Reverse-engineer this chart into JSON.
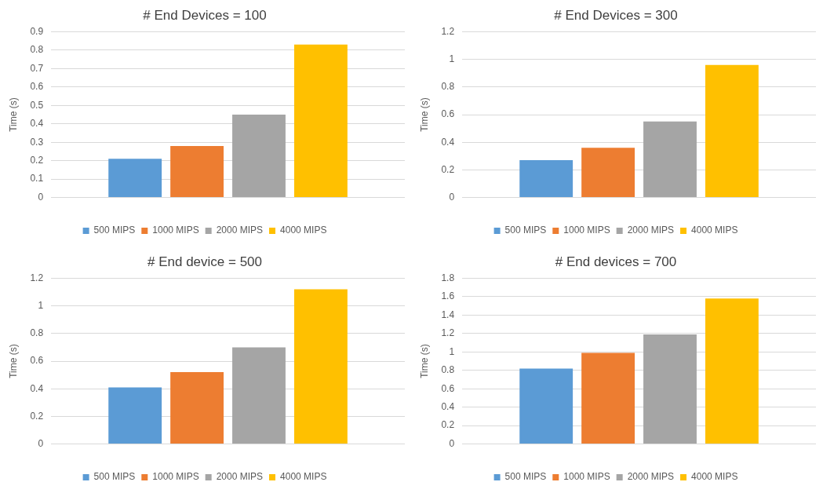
{
  "chart_data": [
    {
      "type": "bar",
      "title": "# End Devices = 100",
      "ylabel": "Time (s)",
      "categories": [
        null
      ],
      "series": [
        {
          "name": "500 MIPS",
          "color": "#5b9bd5",
          "values": [
            0.21
          ]
        },
        {
          "name": "1000 MIPS",
          "color": "#ed7d31",
          "values": [
            0.28
          ]
        },
        {
          "name": "2000 MIPS",
          "color": "#a5a5a5",
          "values": [
            0.45
          ]
        },
        {
          "name": "4000 MIPS",
          "color": "#ffc000",
          "values": [
            0.83
          ]
        }
      ],
      "ylim": [
        0,
        0.9
      ],
      "yticks": [
        0,
        0.1,
        0.2,
        0.3,
        0.4,
        0.5,
        0.6,
        0.7,
        0.8,
        0.9
      ],
      "grid": "y",
      "legend": "bottom"
    },
    {
      "type": "bar",
      "title": "# End Devices = 300",
      "ylabel": "Time (s)",
      "categories": [
        null
      ],
      "series": [
        {
          "name": "500 MIPS",
          "color": "#5b9bd5",
          "values": [
            0.27
          ]
        },
        {
          "name": "1000 MIPS",
          "color": "#ed7d31",
          "values": [
            0.36
          ]
        },
        {
          "name": "2000 MIPS",
          "color": "#a5a5a5",
          "values": [
            0.55
          ]
        },
        {
          "name": "4000 MIPS",
          "color": "#ffc000",
          "values": [
            0.96
          ]
        }
      ],
      "ylim": [
        0,
        1.2
      ],
      "yticks": [
        0,
        0.2,
        0.4,
        0.6,
        0.8,
        1,
        1.2
      ],
      "grid": "y",
      "legend": "bottom"
    },
    {
      "type": "bar",
      "title": "# End device = 500",
      "ylabel": "Time (s)",
      "categories": [
        null
      ],
      "series": [
        {
          "name": "500 MIPS",
          "color": "#5b9bd5",
          "values": [
            0.41
          ]
        },
        {
          "name": "1000 MIPS",
          "color": "#ed7d31",
          "values": [
            0.52
          ]
        },
        {
          "name": "2000 MIPS",
          "color": "#a5a5a5",
          "values": [
            0.7
          ]
        },
        {
          "name": "4000 MIPS",
          "color": "#ffc000",
          "values": [
            1.12
          ]
        }
      ],
      "ylim": [
        0,
        1.2
      ],
      "yticks": [
        0,
        0.2,
        0.4,
        0.6,
        0.8,
        1,
        1.2
      ],
      "grid": "y",
      "legend": "bottom"
    },
    {
      "type": "bar",
      "title": "# End devices = 700",
      "ylabel": "Time (s)",
      "categories": [
        null
      ],
      "series": [
        {
          "name": "500 MIPS",
          "color": "#5b9bd5",
          "values": [
            0.82
          ]
        },
        {
          "name": "1000 MIPS",
          "color": "#ed7d31",
          "values": [
            0.99
          ]
        },
        {
          "name": "2000 MIPS",
          "color": "#a5a5a5",
          "values": [
            1.19
          ]
        },
        {
          "name": "4000 MIPS",
          "color": "#ffc000",
          "values": [
            1.58
          ]
        }
      ],
      "ylim": [
        0,
        1.8
      ],
      "yticks": [
        0,
        0.2,
        0.4,
        0.6,
        0.8,
        1,
        1.2,
        1.4,
        1.6,
        1.8
      ],
      "grid": "y",
      "legend": "bottom"
    }
  ]
}
